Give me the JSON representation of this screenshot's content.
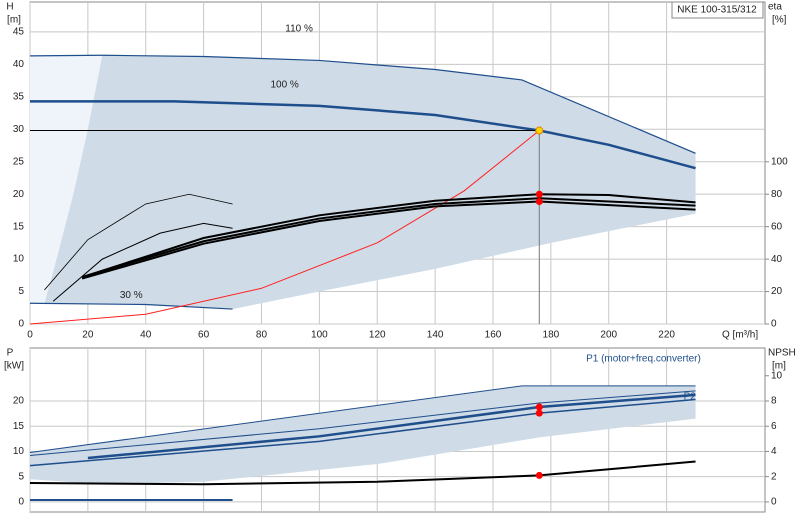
{
  "chart_data": [
    {
      "type": "line",
      "name_box": "NKE 100-315/312",
      "ylabel": "H",
      "yunit": "[m]",
      "y2label": "eta",
      "y2unit": "[%]",
      "xlabel": "Q [m³/h]",
      "xlim": [
        0,
        254
      ],
      "ylim": [
        0,
        49.6
      ],
      "y2lim": [
        0,
        198.5
      ],
      "xticks": [
        0,
        20,
        40,
        60,
        80,
        100,
        120,
        140,
        160,
        180,
        200,
        220
      ],
      "yticks": [
        0,
        5,
        10,
        15,
        20,
        25,
        30,
        35,
        40,
        45
      ],
      "y2ticks": [
        0,
        20,
        40,
        60,
        80,
        100
      ],
      "grid": true,
      "annotations": [
        "110 %",
        "100 %",
        "30 %"
      ],
      "series": [
        {
          "kind": "region",
          "color": "#eef4fa",
          "x": [
            0,
            25,
            20,
            15,
            8,
            5,
            0
          ],
          "values": [
            41.3,
            41.4,
            30,
            20,
            8,
            3.2,
            3.2
          ]
        },
        {
          "kind": "region",
          "color": "#cfdbe6",
          "x": [
            25,
            60,
            100,
            140,
            170,
            230,
            230,
            180,
            140,
            100,
            70,
            40,
            5,
            8,
            15,
            20
          ],
          "values": [
            41.4,
            41.2,
            40.6,
            39.2,
            37.6,
            26.3,
            17,
            12.5,
            8.5,
            5,
            2.3,
            3,
            3.2,
            8,
            20,
            30
          ]
        },
        {
          "kind": "line",
          "color": "#1f4e8c",
          "width": 1.2,
          "x": [
            0,
            25,
            60,
            100,
            140,
            170,
            230
          ],
          "values": [
            41.3,
            41.4,
            41.2,
            40.6,
            39.2,
            37.6,
            26.3
          ]
        },
        {
          "kind": "line",
          "color": "#1f4e8c",
          "width": 2.5,
          "x": [
            0,
            50,
            100,
            140,
            176,
            200,
            230
          ],
          "values": [
            34.3,
            34.3,
            33.6,
            32.2,
            29.8,
            27.6,
            24
          ]
        },
        {
          "kind": "line",
          "color": "#1f4e8c",
          "width": 1.2,
          "x": [
            0,
            40,
            70
          ],
          "values": [
            3.2,
            3,
            2.3
          ]
        },
        {
          "kind": "line",
          "color": "#000000",
          "width": 1,
          "x": [
            0,
            176
          ],
          "values": [
            29.8,
            29.8
          ]
        },
        {
          "kind": "line",
          "color": "#777777",
          "width": 1,
          "x": [
            176,
            176
          ],
          "values": [
            0,
            29.8
          ]
        },
        {
          "kind": "line",
          "color": "#ff2020",
          "width": 1,
          "x": [
            0,
            40,
            80,
            120,
            150,
            176
          ],
          "values": [
            0,
            1.5,
            5.5,
            12.5,
            20.5,
            29.8
          ]
        },
        {
          "kind": "line",
          "axis": "y2",
          "color": "#000000",
          "width": 0.8,
          "x": [
            5,
            20,
            40,
            55,
            70
          ],
          "values": [
            21,
            52,
            74,
            80,
            74
          ]
        },
        {
          "kind": "line",
          "axis": "y2",
          "color": "#000000",
          "width": 1,
          "x": [
            8,
            25,
            45,
            60,
            70
          ],
          "values": [
            14,
            40,
            56,
            62,
            59
          ]
        },
        {
          "kind": "line",
          "axis": "y2",
          "color": "#000000",
          "width": 2,
          "x": [
            20,
            60,
            100,
            140,
            176,
            200,
            230
          ],
          "values": [
            30,
            53,
            67,
            76,
            80,
            79.5,
            75
          ]
        },
        {
          "kind": "line",
          "axis": "y2",
          "color": "#000000",
          "width": 2,
          "x": [
            18,
            60,
            100,
            140,
            176,
            230
          ],
          "values": [
            29,
            51,
            65,
            74,
            77.5,
            73
          ]
        },
        {
          "kind": "line",
          "axis": "y2",
          "color": "#000000",
          "width": 2,
          "x": [
            18,
            60,
            100,
            140,
            176,
            230
          ],
          "values": [
            28,
            49.5,
            63.5,
            72.5,
            75.5,
            70.5
          ]
        }
      ],
      "points": [
        {
          "x": 176,
          "y": 29.8,
          "color": "#ffd700"
        },
        {
          "x": 176,
          "y": 80,
          "axis": "y2",
          "color": "#ff0000"
        },
        {
          "x": 176,
          "y": 75.5,
          "axis": "y2",
          "color": "#ff0000"
        }
      ]
    },
    {
      "type": "line",
      "ylabel": "P",
      "yunit": "[kW]",
      "y2label": "NPSH",
      "y2unit": "[m]",
      "xlim": [
        0,
        254
      ],
      "ylim": [
        -2,
        30.5
      ],
      "y2lim": [
        -0.8,
        12.2
      ],
      "xticks": [
        0,
        20,
        40,
        60,
        80,
        100,
        120,
        140,
        160,
        180,
        200,
        220
      ],
      "yticks": [
        0,
        5,
        10,
        15,
        20
      ],
      "y2ticks": [
        0,
        2,
        4,
        6,
        8,
        10
      ],
      "grid": true,
      "annotations": [
        "P1 (motor+freq.converter)",
        "P2"
      ],
      "series": [
        {
          "kind": "region",
          "color": "#cfdbe6",
          "x": [
            0,
            170,
            230,
            230,
            176,
            120,
            60,
            25,
            0
          ],
          "values": [
            9.8,
            23,
            23,
            16.5,
            12.8,
            7.5,
            4,
            3.5,
            4.5
          ]
        },
        {
          "kind": "line",
          "color": "#1f4e8c",
          "width": 1,
          "x": [
            0,
            170,
            230
          ],
          "values": [
            9.8,
            23,
            23
          ]
        },
        {
          "kind": "line",
          "color": "#1f4e8c",
          "width": 1,
          "x": [
            0,
            100,
            176,
            230
          ],
          "values": [
            9.2,
            14.5,
            19.6,
            22
          ]
        },
        {
          "kind": "line",
          "color": "#1f4e8c",
          "width": 2.5,
          "x": [
            20,
            100,
            176,
            230
          ],
          "values": [
            8.7,
            13,
            18.8,
            21.2
          ]
        },
        {
          "kind": "line",
          "color": "#1f4e8c",
          "width": 1.5,
          "x": [
            0,
            100,
            176,
            230
          ],
          "values": [
            7.2,
            12,
            17.6,
            20.3
          ]
        },
        {
          "kind": "line",
          "axis": "y2",
          "color": "#000000",
          "width": 2,
          "x": [
            0,
            60,
            120,
            176,
            230
          ],
          "values": [
            1.5,
            1.4,
            1.6,
            2.1,
            3.2
          ]
        },
        {
          "kind": "line",
          "axis": "y2",
          "color": "#1f4e8c",
          "width": 2,
          "x": [
            0,
            70
          ],
          "values": [
            0.15,
            0.15
          ]
        }
      ],
      "points": [
        {
          "x": 176,
          "y": 18.8,
          "color": "#ff0000"
        },
        {
          "x": 176,
          "y": 17.6,
          "color": "#ff0000"
        },
        {
          "x": 176,
          "y": 2.1,
          "axis": "y2",
          "color": "#ff0000"
        }
      ]
    }
  ]
}
